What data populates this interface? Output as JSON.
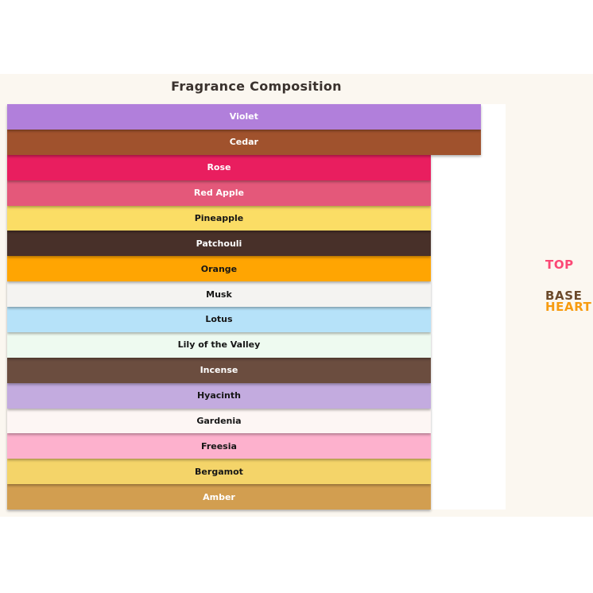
{
  "page": {
    "background": "#ffffff",
    "canvas_background": "#fbf7f0",
    "plot_background": "#ffffff",
    "title_color": "#3a322e"
  },
  "chart": {
    "title": "Fragrance Composition"
  },
  "chart_data": {
    "type": "bar",
    "orientation": "horizontal",
    "title": "Fragrance Composition",
    "xlabel": "",
    "ylabel": "",
    "axes_visible": false,
    "grid": false,
    "xlim": [
      0,
      100
    ],
    "value_unit": "percent-of-plot-width",
    "categories": [
      "Violet",
      "Cedar",
      "Rose",
      "Red Apple",
      "Pineapple",
      "Patchouli",
      "Orange",
      "Musk",
      "Lotus",
      "Lily of the Valley",
      "Incense",
      "Hyacinth",
      "Gardenia",
      "Freesia",
      "Bergamot",
      "Amber"
    ],
    "values": [
      95,
      95,
      85,
      85,
      85,
      85,
      85,
      85,
      85,
      85,
      85,
      85,
      85,
      85,
      85,
      85
    ],
    "bars": [
      {
        "label": "Violet",
        "value": 95,
        "color": "#b17fdb",
        "text_color": "#ffffff"
      },
      {
        "label": "Cedar",
        "value": 95,
        "color": "#a0522d",
        "text_color": "#ffffff"
      },
      {
        "label": "Rose",
        "value": 85,
        "color": "#e91e5f",
        "text_color": "#ffffff"
      },
      {
        "label": "Red Apple",
        "value": 85,
        "color": "#e4587a",
        "text_color": "#ffffff"
      },
      {
        "label": "Pineapple",
        "value": 85,
        "color": "#fbdd65",
        "text_color": "#161616"
      },
      {
        "label": "Patchouli",
        "value": 85,
        "color": "#483029",
        "text_color": "#ffffff"
      },
      {
        "label": "Orange",
        "value": 85,
        "color": "#ffa502",
        "text_color": "#161616"
      },
      {
        "label": "Musk",
        "value": 85,
        "color": "#f4f3f1",
        "text_color": "#161616"
      },
      {
        "label": "Lotus",
        "value": 85,
        "color": "#b6e2f9",
        "text_color": "#161616"
      },
      {
        "label": "Lily of the Valley",
        "value": 85,
        "color": "#eefaf0",
        "text_color": "#161616"
      },
      {
        "label": "Incense",
        "value": 85,
        "color": "#6b4d3f",
        "text_color": "#ffffff"
      },
      {
        "label": "Hyacinth",
        "value": 85,
        "color": "#c3abdf",
        "text_color": "#161616"
      },
      {
        "label": "Gardenia",
        "value": 85,
        "color": "#fdf6f4",
        "text_color": "#161616"
      },
      {
        "label": "Freesia",
        "value": 85,
        "color": "#fdb1cd",
        "text_color": "#161616"
      },
      {
        "label": "Bergamot",
        "value": 85,
        "color": "#f4d469",
        "text_color": "#161616"
      },
      {
        "label": "Amber",
        "value": 85,
        "color": "#d29e50",
        "text_color": "#ffffff"
      }
    ],
    "group_labels": [
      {
        "label": "TOP",
        "color": "#fb4875"
      },
      {
        "label": "BASE",
        "color": "#6b4a2b"
      },
      {
        "label": "HEART",
        "color": "#f79b0f"
      }
    ],
    "legend_position": "right-of-plot"
  }
}
